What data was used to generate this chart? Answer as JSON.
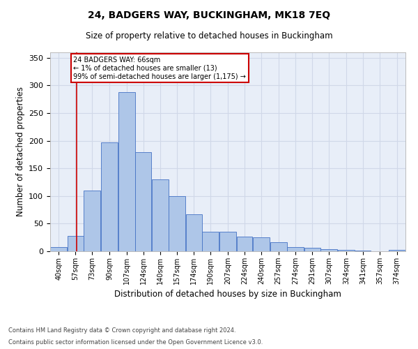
{
  "title_line1": "24, BADGERS WAY, BUCKINGHAM, MK18 7EQ",
  "title_line2": "Size of property relative to detached houses in Buckingham",
  "xlabel": "Distribution of detached houses by size in Buckingham",
  "ylabel": "Number of detached properties",
  "footnote1": "Contains HM Land Registry data © Crown copyright and database right 2024.",
  "footnote2": "Contains public sector information licensed under the Open Government Licence v3.0.",
  "annotation_line1": "24 BADGERS WAY: 66sqm",
  "annotation_line2": "← 1% of detached houses are smaller (13)",
  "annotation_line3": "99% of semi-detached houses are larger (1,175) →",
  "bar_color": "#AEC6E8",
  "bar_edge_color": "#4472C4",
  "red_line_x": 66,
  "categories": [
    "40sqm",
    "57sqm",
    "73sqm",
    "90sqm",
    "107sqm",
    "124sqm",
    "140sqm",
    "157sqm",
    "174sqm",
    "190sqm",
    "207sqm",
    "224sqm",
    "240sqm",
    "257sqm",
    "274sqm",
    "291sqm",
    "307sqm",
    "324sqm",
    "341sqm",
    "357sqm",
    "374sqm"
  ],
  "bar_left_edges": [
    40,
    57,
    73,
    90,
    107,
    124,
    140,
    157,
    174,
    190,
    207,
    224,
    240,
    257,
    274,
    291,
    307,
    324,
    341,
    357,
    374
  ],
  "bar_widths": [
    17,
    16,
    17,
    17,
    17,
    16,
    17,
    17,
    16,
    17,
    17,
    16,
    17,
    17,
    17,
    16,
    17,
    17,
    16,
    17,
    17
  ],
  "bar_heights": [
    7,
    28,
    110,
    197,
    288,
    180,
    130,
    100,
    67,
    36,
    35,
    26,
    25,
    17,
    8,
    6,
    4,
    3,
    1,
    0,
    2
  ],
  "ylim": [
    0,
    360
  ],
  "yticks": [
    0,
    50,
    100,
    150,
    200,
    250,
    300,
    350
  ],
  "grid_color": "#D0D8E8",
  "background_color": "#E8EEF8",
  "annotation_box_edge_color": "#CC0000",
  "red_line_color": "#CC0000",
  "fig_width": 6.0,
  "fig_height": 5.0,
  "dpi": 100
}
